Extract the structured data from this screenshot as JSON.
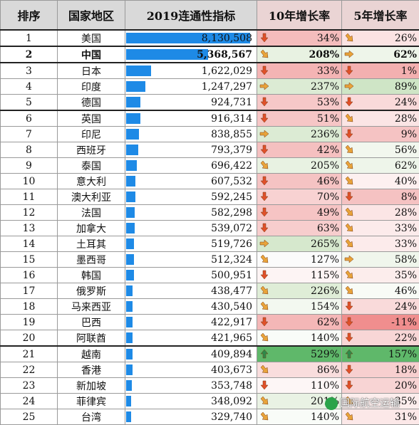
{
  "headers": {
    "rank": "排序",
    "country": "国家地区",
    "metric": "2019连通性指标",
    "growth10": "10年增长率",
    "growth5": "5年增长率"
  },
  "rows": [
    {
      "rank": "1",
      "country": "美国",
      "metric": "8,130,508",
      "metric_value": 8130508,
      "g10": "34%",
      "g10_value": 34,
      "g10_icon": "arrow-down-icon",
      "g10_color": "#f4bcbc",
      "g5": "26%",
      "g5_value": 26,
      "g5_icon": "arrow-down-right-icon",
      "g5_color": "#fbe3e3"
    },
    {
      "rank": "2",
      "country": "中国",
      "metric": "5,368,567",
      "metric_value": 5368567,
      "g10": "208%",
      "g10_value": 208,
      "g10_icon": "arrow-down-right-icon",
      "g10_color": "#e8f2e2",
      "g5": "62%",
      "g5_value": 62,
      "g5_icon": "arrow-right-icon",
      "g5_color": "#eef5ea"
    },
    {
      "rank": "3",
      "country": "日本",
      "metric": "1,622,029",
      "metric_value": 1622029,
      "g10": "33%",
      "g10_value": 33,
      "g10_icon": "arrow-down-icon",
      "g10_color": "#f4b4b4",
      "g5": "1%",
      "g5_value": 1,
      "g5_icon": "arrow-down-icon",
      "g5_color": "#f3b0b0"
    },
    {
      "rank": "4",
      "country": "印度",
      "metric": "1,247,297",
      "metric_value": 1247297,
      "g10": "237%",
      "g10_value": 237,
      "g10_icon": "arrow-right-icon",
      "g10_color": "#dcebd4",
      "g5": "89%",
      "g5_value": 89,
      "g5_icon": "arrow-right-icon",
      "g5_color": "#cfe5c6"
    },
    {
      "rank": "5",
      "country": "德国",
      "metric": "924,731",
      "metric_value": 924731,
      "g10": "53%",
      "g10_value": 53,
      "g10_icon": "arrow-down-icon",
      "g10_color": "#f6c8c8",
      "g5": "24%",
      "g5_value": 24,
      "g5_icon": "arrow-down-icon",
      "g5_color": "#f9dada"
    },
    {
      "rank": "6",
      "country": "英国",
      "metric": "916,314",
      "metric_value": 916314,
      "g10": "51%",
      "g10_value": 51,
      "g10_icon": "arrow-down-icon",
      "g10_color": "#f6c6c6",
      "g5": "28%",
      "g5_value": 28,
      "g5_icon": "arrow-down-right-icon",
      "g5_color": "#fbe5e5"
    },
    {
      "rank": "7",
      "country": "印尼",
      "metric": "838,855",
      "metric_value": 838855,
      "g10": "236%",
      "g10_value": 236,
      "g10_icon": "arrow-right-icon",
      "g10_color": "#dcebd4",
      "g5": "9%",
      "g5_value": 9,
      "g5_icon": "arrow-down-icon",
      "g5_color": "#f5c3c3"
    },
    {
      "rank": "8",
      "country": "西班牙",
      "metric": "793,379",
      "metric_value": 793379,
      "g10": "42%",
      "g10_value": 42,
      "g10_icon": "arrow-down-icon",
      "g10_color": "#f5c0c0",
      "g5": "56%",
      "g5_value": 56,
      "g5_icon": "arrow-down-right-icon",
      "g5_color": "#f2f7ee"
    },
    {
      "rank": "9",
      "country": "泰国",
      "metric": "696,422",
      "metric_value": 696422,
      "g10": "205%",
      "g10_value": 205,
      "g10_icon": "arrow-down-right-icon",
      "g10_color": "#e8f2e2",
      "g5": "62%",
      "g5_value": 62,
      "g5_icon": "arrow-down-right-icon",
      "g5_color": "#eef5ea"
    },
    {
      "rank": "10",
      "country": "意大利",
      "metric": "607,532",
      "metric_value": 607532,
      "g10": "46%",
      "g10_value": 46,
      "g10_icon": "arrow-down-icon",
      "g10_color": "#f5c3c3",
      "g5": "40%",
      "g5_value": 40,
      "g5_icon": "arrow-down-right-icon",
      "g5_color": "#fdf0f0"
    },
    {
      "rank": "11",
      "country": "澳大利亚",
      "metric": "592,245",
      "metric_value": 592245,
      "g10": "70%",
      "g10_value": 70,
      "g10_icon": "arrow-down-icon",
      "g10_color": "#f8d2d2",
      "g5": "8%",
      "g5_value": 8,
      "g5_icon": "arrow-down-icon",
      "g5_color": "#f5c2c2"
    },
    {
      "rank": "12",
      "country": "法国",
      "metric": "582,298",
      "metric_value": 582298,
      "g10": "49%",
      "g10_value": 49,
      "g10_icon": "arrow-down-icon",
      "g10_color": "#f6c4c4",
      "g5": "28%",
      "g5_value": 28,
      "g5_icon": "arrow-down-right-icon",
      "g5_color": "#fbe5e5"
    },
    {
      "rank": "13",
      "country": "加拿大",
      "metric": "539,072",
      "metric_value": 539072,
      "g10": "63%",
      "g10_value": 63,
      "g10_icon": "arrow-down-icon",
      "g10_color": "#f7cdcd",
      "g5": "33%",
      "g5_value": 33,
      "g5_icon": "arrow-down-right-icon",
      "g5_color": "#fcebeb"
    },
    {
      "rank": "14",
      "country": "土耳其",
      "metric": "519,726",
      "metric_value": 519726,
      "g10": "265%",
      "g10_value": 265,
      "g10_icon": "arrow-right-icon",
      "g10_color": "#d6e8cd",
      "g5": "33%",
      "g5_value": 33,
      "g5_icon": "arrow-down-right-icon",
      "g5_color": "#fcebeb"
    },
    {
      "rank": "15",
      "country": "墨西哥",
      "metric": "512,324",
      "metric_value": 512324,
      "g10": "127%",
      "g10_value": 127,
      "g10_icon": "arrow-down-right-icon",
      "g10_color": "#fbfbfb",
      "g5": "58%",
      "g5_value": 58,
      "g5_icon": "arrow-right-icon",
      "g5_color": "#f0f6ec"
    },
    {
      "rank": "16",
      "country": "韩国",
      "metric": "500,951",
      "metric_value": 500951,
      "g10": "115%",
      "g10_value": 115,
      "g10_icon": "arrow-down-icon",
      "g10_color": "#fdf4f4",
      "g5": "35%",
      "g5_value": 35,
      "g5_icon": "arrow-down-right-icon",
      "g5_color": "#fcedec"
    },
    {
      "rank": "17",
      "country": "俄罗斯",
      "metric": "438,477",
      "metric_value": 438477,
      "g10": "226%",
      "g10_value": 226,
      "g10_icon": "arrow-down-right-icon",
      "g10_color": "#dfedd7",
      "g5": "46%",
      "g5_value": 46,
      "g5_icon": "arrow-down-right-icon",
      "g5_color": "#f8fbf6"
    },
    {
      "rank": "18",
      "country": "马来西亚",
      "metric": "430,540",
      "metric_value": 430540,
      "g10": "154%",
      "g10_value": 154,
      "g10_icon": "arrow-down-right-icon",
      "g10_color": "#f3f8f0",
      "g5": "24%",
      "g5_value": 24,
      "g5_icon": "arrow-down-icon",
      "g5_color": "#f9dada"
    },
    {
      "rank": "19",
      "country": "巴西",
      "metric": "422,917",
      "metric_value": 422917,
      "g10": "62%",
      "g10_value": 62,
      "g10_icon": "arrow-down-icon",
      "g10_color": "#f4b7b7",
      "g5": "-11%",
      "g5_value": -11,
      "g5_icon": "arrow-down-icon",
      "g5_color": "#f08e8e"
    },
    {
      "rank": "20",
      "country": "阿联酋",
      "metric": "421,965",
      "metric_value": 421965,
      "g10": "140%",
      "g10_value": 140,
      "g10_icon": "arrow-down-right-icon",
      "g10_color": "#f9fcf8",
      "g5": "22%",
      "g5_value": 22,
      "g5_icon": "arrow-down-icon",
      "g5_color": "#f8d6d6"
    },
    {
      "rank": "21",
      "country": "越南",
      "metric": "409,894",
      "metric_value": 409894,
      "g10": "529%",
      "g10_value": 529,
      "g10_icon": "arrow-up-icon",
      "g10_color": "#5fb86a",
      "g5": "157%",
      "g5_value": 157,
      "g5_icon": "arrow-up-icon",
      "g5_color": "#5fb86a"
    },
    {
      "rank": "22",
      "country": "香港",
      "metric": "403,673",
      "metric_value": 403673,
      "g10": "86%",
      "g10_value": 86,
      "g10_icon": "arrow-down-right-icon",
      "g10_color": "#f9dddd",
      "g5": "18%",
      "g5_value": 18,
      "g5_icon": "arrow-down-icon",
      "g5_color": "#f7cfcf"
    },
    {
      "rank": "23",
      "country": "新加坡",
      "metric": "353,748",
      "metric_value": 353748,
      "g10": "110%",
      "g10_value": 110,
      "g10_icon": "arrow-down-icon",
      "g10_color": "#fdf6f6",
      "g5": "20%",
      "g5_value": 20,
      "g5_icon": "arrow-down-icon",
      "g5_color": "#f8d4d4"
    },
    {
      "rank": "24",
      "country": "菲律宾",
      "metric": "348,092",
      "metric_value": 348092,
      "g10": "201%",
      "g10_value": 201,
      "g10_icon": "arrow-down-right-icon",
      "g10_color": "#e9f2e4",
      "g5": "35%",
      "g5_value": 35,
      "g5_icon": "arrow-down-right-icon",
      "g5_color": "#fcedec"
    },
    {
      "rank": "25",
      "country": "台湾",
      "metric": "329,740",
      "metric_value": 329740,
      "g10": "140%",
      "g10_value": 140,
      "g10_icon": "arrow-down-right-icon",
      "g10_color": "#f9fcf8",
      "g5": "31%",
      "g5_value": 31,
      "g5_icon": "arrow-down-right-icon",
      "g5_color": "#fce8e8"
    }
  ],
  "metric_max": 8130508,
  "bar_color": "#1e8ae6",
  "watermark": "国际航空运输"
}
